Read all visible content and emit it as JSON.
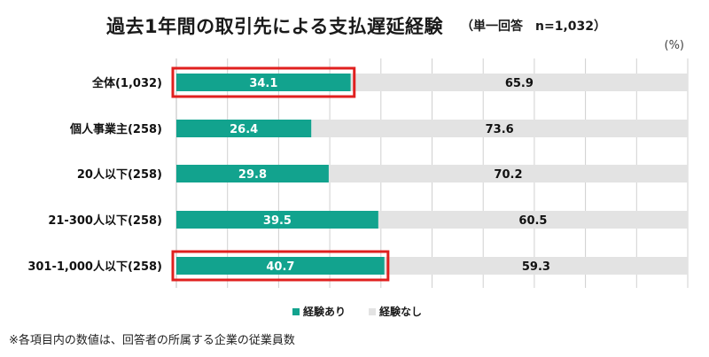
{
  "chart_data": {
    "type": "bar",
    "orientation": "horizontal-stacked-100",
    "title": "過去1年間の取引先による支払遅延経験",
    "subtitle": "（単一回答　n=1,032）",
    "unit_label": "(%)",
    "categories": [
      "全体(1,032)",
      "個人事業主(258)",
      "20人以下(258)",
      "21-300人以下(258)",
      "301-1,000人以下(258)"
    ],
    "series": [
      {
        "name": "経験あり",
        "values": [
          34.1,
          26.4,
          29.8,
          39.5,
          40.7
        ],
        "color": "#12a38e",
        "label_color": "#ffffff"
      },
      {
        "name": "経験なし",
        "values": [
          65.9,
          73.6,
          70.2,
          60.5,
          59.3
        ],
        "color": "#e3e3e3",
        "label_color": "#111111"
      }
    ],
    "xlim": [
      0,
      100
    ],
    "gridlines": [
      10,
      20,
      30,
      40,
      50,
      60,
      70,
      80,
      90,
      100
    ],
    "highlighted_categories": [
      "全体(1,032)",
      "301-1,000人以下(258)"
    ],
    "highlight_color": "#e0201f",
    "footnote": "※各項目内の数値は、回答者の所属する企業の従業員数"
  }
}
